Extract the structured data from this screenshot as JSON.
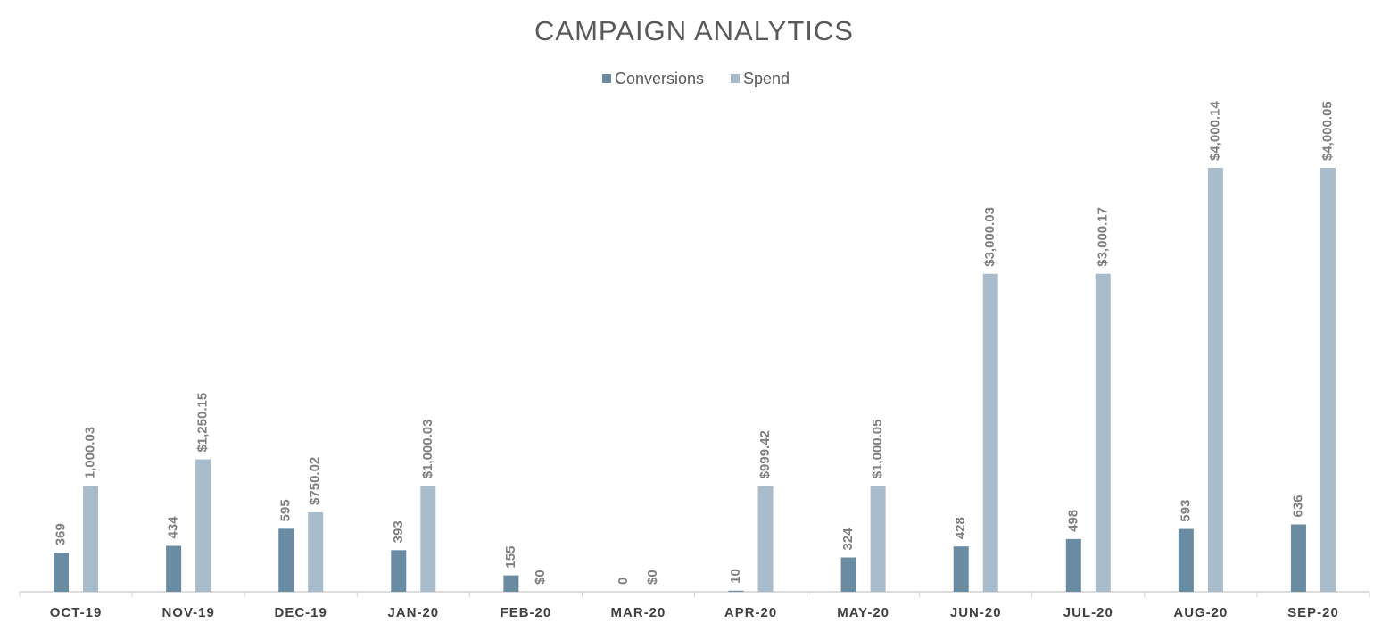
{
  "chart_data": {
    "type": "bar",
    "title": "CAMPAIGN ANALYTICS",
    "categories": [
      "OCT-19",
      "NOV-19",
      "DEC-19",
      "JAN-20",
      "FEB-20",
      "MAR-20",
      "APR-20",
      "MAY-20",
      "JUN-20",
      "JUL-20",
      "AUG-20",
      "SEP-20"
    ],
    "series": [
      {
        "name": "Conversions",
        "color": "#6a8ca3",
        "values": [
          369,
          434,
          595,
          393,
          155,
          0,
          10,
          324,
          428,
          498,
          593,
          636
        ]
      },
      {
        "name": "Spend",
        "color": "#a8bccb",
        "values": [
          1000.03,
          1250.15,
          750.02,
          1000.03,
          0,
          0,
          999.42,
          1000.05,
          3000.03,
          3000.17,
          4000.14,
          4000.05
        ],
        "value_labels": [
          "1,000.03",
          "$1,250.15",
          "$750.02",
          "$1,000.03",
          "$0",
          "$0",
          "$999.42",
          "$1,000.05",
          "$3,000.03",
          "$3,000.17",
          "$4,000.14",
          "$4,000.05"
        ]
      }
    ],
    "legend": "top"
  }
}
